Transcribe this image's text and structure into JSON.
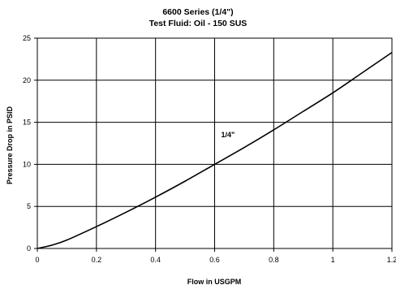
{
  "chart_data": {
    "type": "line",
    "title": "6600 Series (1/4\")",
    "subtitle": "Test Fluid: Oil - 150 SUS",
    "xlabel": "Flow in USGPM",
    "ylabel": "Pressure Drop in PSID",
    "xlim": [
      0,
      1.2
    ],
    "ylim": [
      0,
      25
    ],
    "x_ticks": [
      0,
      0.2,
      0.4,
      0.6,
      0.8,
      1,
      1.2
    ],
    "x_tick_labels": [
      "0",
      "0.2",
      "0.4",
      "0.6",
      "0.8",
      "1",
      "1.2"
    ],
    "y_ticks": [
      0,
      5,
      10,
      15,
      20,
      25
    ],
    "y_tick_labels": [
      "0",
      "5",
      "10",
      "15",
      "20",
      "25"
    ],
    "grid": true,
    "series": [
      {
        "name": "1/4\"",
        "x": [
          0,
          0.05,
          0.1,
          0.2,
          0.3,
          0.4,
          0.5,
          0.6,
          0.7,
          0.8,
          0.9,
          1.0,
          1.1,
          1.2
        ],
        "y": [
          0,
          0.4,
          1.0,
          2.6,
          4.3,
          6.1,
          8.0,
          10.0,
          12.0,
          14.1,
          16.3,
          18.5,
          20.9,
          23.3
        ]
      }
    ],
    "annotations": [
      {
        "text": "1/4\"",
        "x": 0.645,
        "y": 13.2
      }
    ],
    "colors": {
      "grid": "#000000",
      "line": "#000000",
      "background": "#ffffff"
    }
  }
}
